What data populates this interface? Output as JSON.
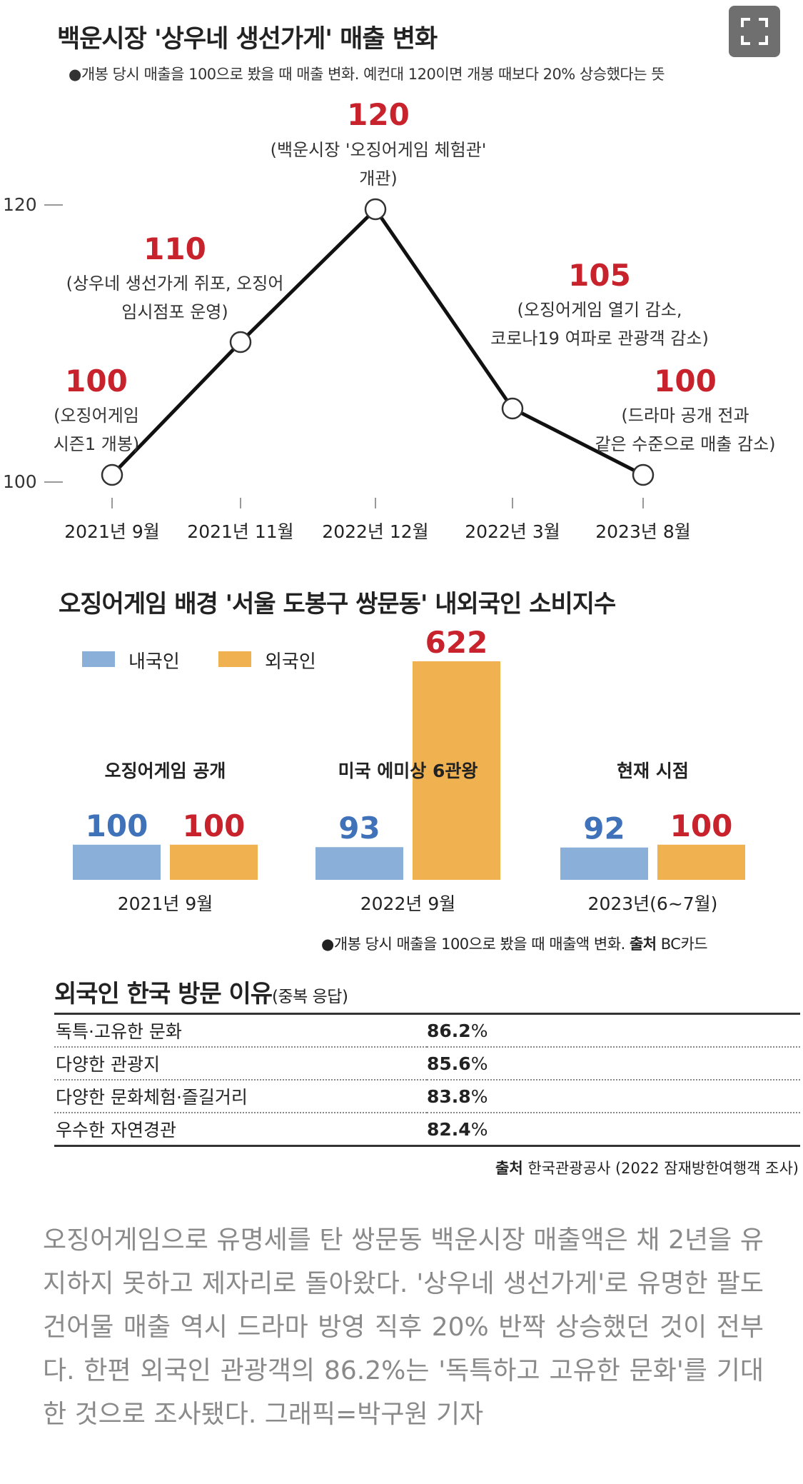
{
  "fullscreen": {
    "icon": "fullscreen-icon"
  },
  "line_chart": {
    "title": "백운시장 '상우네 생선가게' 매출 변화",
    "subtitle": "●개봉 당시 매출을 100으로 봤을 때 매출 변화. 예컨대 120이면 개봉 때보다 20% 상승했다는 뜻",
    "y_ticks": [
      "120",
      "100"
    ],
    "annotations": [
      {
        "value_label": "100",
        "note_lines": [
          "(오징어게임",
          "시즌1 개봉)"
        ]
      },
      {
        "value_label": "110",
        "note_lines": [
          "(상우네 생선가게 쥐포, 오징어",
          "임시점포 운영)"
        ]
      },
      {
        "value_label": "120",
        "note_lines": [
          "(백운시장 '오징어게임 체험관'",
          "개관)"
        ]
      },
      {
        "value_label": "105",
        "note_lines": [
          "(오징어게임 열기 감소,",
          "코로나19 여파로 관광객 감소)"
        ]
      },
      {
        "value_label": "100",
        "note_lines": [
          "(드라마 공개 전과",
          "같은 수준으로 매출 감소)"
        ]
      }
    ]
  },
  "bar_chart": {
    "title": "오징어게임 배경 '서울 도봉구 쌍문동' 내외국인 소비지수",
    "groups": [
      {
        "label": "오징어게임 공개",
        "period": "2021년 9월"
      },
      {
        "label": "미국 에미상 6관왕",
        "period": "2022년 9월"
      },
      {
        "label": "현재 시점",
        "period": "2023년(6~7월)"
      }
    ],
    "note": "●개봉 당시 매출을 100으로 봤을 때 매출액 변화.",
    "source_label": "출처",
    "source": "BC카드"
  },
  "table": {
    "title": "외국인 한국 방문 이유",
    "title_note": "(중복 응답)",
    "rows": [
      {
        "label": "독특·고유한 문화",
        "value": "86.2",
        "unit": "%"
      },
      {
        "label": "다양한 관광지",
        "value": "85.6",
        "unit": "%"
      },
      {
        "label": "다양한 문화체험·즐길거리",
        "value": "83.8",
        "unit": "%"
      },
      {
        "label": "우수한 자연경관",
        "value": "82.4",
        "unit": "%"
      }
    ],
    "source_label": "출처",
    "source": "한국관광공사 (2022 잠재방한여행객 조사)"
  },
  "caption": "오징어게임으로 유명세를 탄 쌍문동 백운시장 매출액은 채 2년을 유지하지 못하고 제자리로 돌아왔다. '상우네 생선가게'로 유명한 팔도건어물 매출 역시 드라마 방영 직후 20% 반짝 상승했던 것이 전부다. 한편 외국인 관광객의 86.2%는 '독특하고 고유한 문화'를 기대한 것으로 조사됐다. 그래픽=박구원 기자",
  "colors": {
    "value_red": "#c8232c",
    "domestic": "#8aafd9",
    "foreign": "#f0b150",
    "domestic_text": "#3f72b8",
    "foreign_text": "#c8232c"
  },
  "chart_data": [
    {
      "type": "line",
      "title": "백운시장 '상우네 생선가게' 매출 변화",
      "categories": [
        "2021년 9월",
        "2021년 11월",
        "2022년 12월",
        "2022년 3월",
        "2023년 8월"
      ],
      "values": [
        100,
        110,
        120,
        105,
        100
      ],
      "ylim": [
        100,
        120
      ],
      "grid": false
    },
    {
      "type": "bar",
      "title": "오징어게임 배경 '서울 도봉구 쌍문동' 내외국인 소비지수",
      "categories": [
        "2021년 9월",
        "2022년 9월",
        "2023년(6~7월)"
      ],
      "series": [
        {
          "name": "내국인",
          "values": [
            100,
            93,
            92
          ]
        },
        {
          "name": "외국인",
          "values": [
            100,
            622,
            100
          ]
        }
      ],
      "ylim": [
        0,
        622
      ],
      "legend": "top-left"
    }
  ]
}
